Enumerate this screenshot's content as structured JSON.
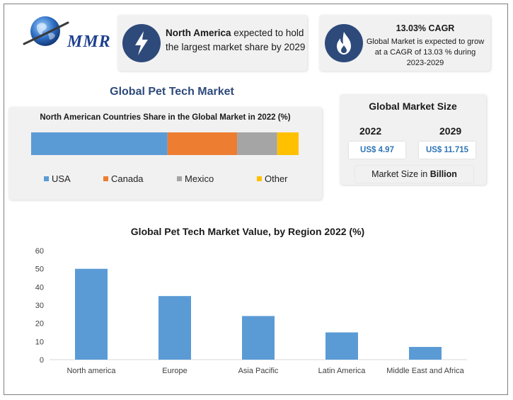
{
  "brand": {
    "logo_text": "MMR"
  },
  "highlight_north_america": {
    "icon": "lightning-bolt-icon",
    "bold_text": "North America",
    "rest_text": " expected to hold the largest market share by 2029"
  },
  "highlight_cagr": {
    "icon": "flame-icon",
    "title": "13.03% CAGR",
    "body": "Global Market is expected to grow at a CAGR of 13.03 % during 2023-2029"
  },
  "main_title": "Global Pet Tech Market",
  "market_size": {
    "title": "Global Market Size",
    "years": [
      "2022",
      "2029"
    ],
    "values": [
      "US$ 4.97",
      "US$ 11.715"
    ],
    "unit_prefix": "Market Size in ",
    "unit_bold": "Billion"
  },
  "chart_data": [
    {
      "type": "bar",
      "orientation": "horizontal-stacked",
      "title": "North American Countries Share in the Global Market in 2022 (%)",
      "series": [
        {
          "name": "USA",
          "value": 51,
          "color": "#5b9bd5"
        },
        {
          "name": "Canada",
          "value": 26,
          "color": "#ed7d31"
        },
        {
          "name": "Mexico",
          "value": 15,
          "color": "#a5a5a5"
        },
        {
          "name": "Other",
          "value": 8,
          "color": "#ffc000"
        }
      ],
      "legend": "bottom"
    },
    {
      "type": "bar",
      "title": "Global Pet Tech Market Value, by Region 2022 (%)",
      "categories": [
        "North america",
        "Europe",
        "Asia Pacific",
        "Latin America",
        "Middle East and Africa"
      ],
      "values": [
        50,
        35,
        24,
        15,
        7
      ],
      "ylim": [
        0,
        60
      ],
      "yticks": [
        0,
        10,
        20,
        30,
        40,
        50,
        60
      ],
      "grid": false,
      "color": "#5b9bd5",
      "xlabel": "",
      "ylabel": ""
    }
  ]
}
